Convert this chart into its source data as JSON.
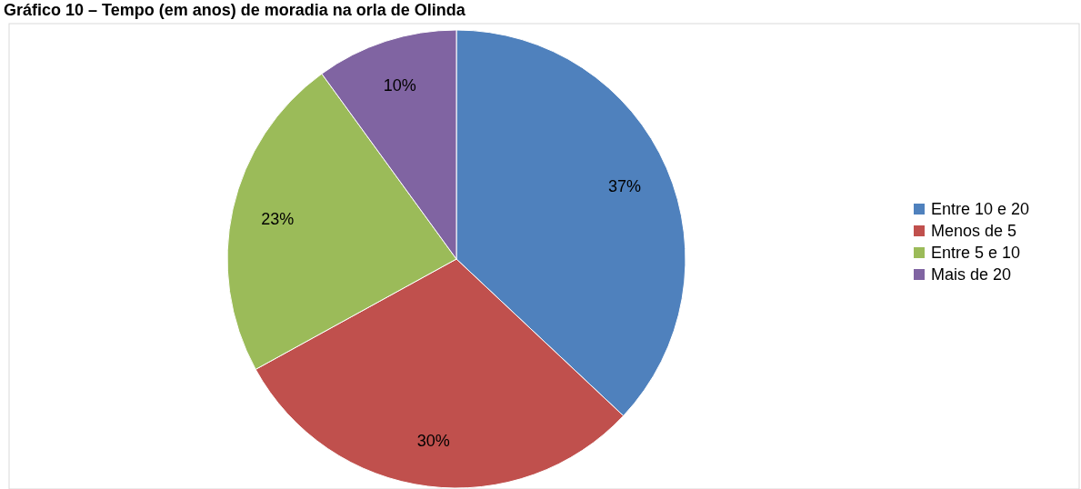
{
  "chart_data": {
    "type": "pie",
    "title": "Gráfico 10 – Tempo (em anos) de moradia na orla de Olinda",
    "categories": [
      "Entre 10 e 20",
      "Menos de 5",
      "Entre 5 e 10",
      "Mais de 20"
    ],
    "values": [
      37,
      30,
      23,
      10
    ],
    "colors": [
      "#4f81bd",
      "#c0504d",
      "#9bbb59",
      "#8064a2"
    ],
    "value_labels": [
      "37%",
      "30%",
      "23%",
      "10%"
    ],
    "legend": "right"
  }
}
